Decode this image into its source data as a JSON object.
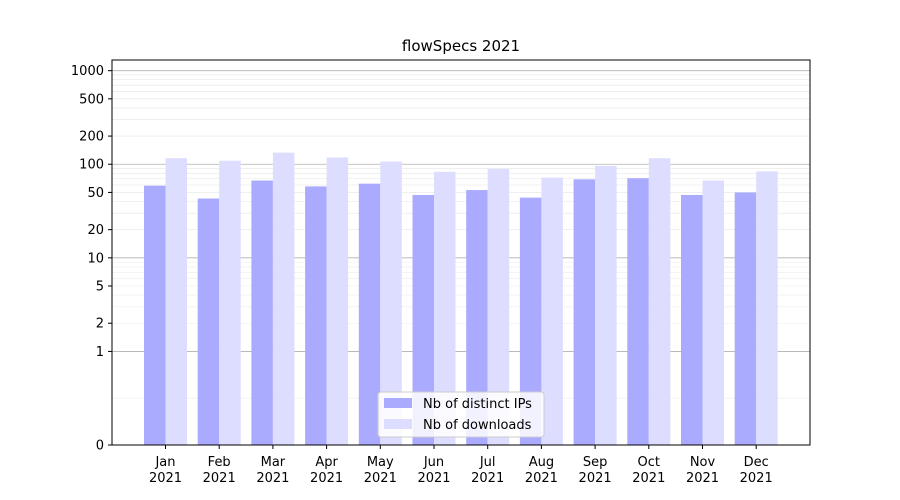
{
  "chart_data": {
    "type": "bar",
    "title": "flowSpecs 2021",
    "xlabel": "",
    "ylabel": "",
    "yscale": "symlog",
    "ylim": [
      0,
      1300
    ],
    "grid": "y-major-and-minor",
    "legend_position": "bottom-center",
    "categories": [
      {
        "month": "Jan",
        "year": "2021"
      },
      {
        "month": "Feb",
        "year": "2021"
      },
      {
        "month": "Mar",
        "year": "2021"
      },
      {
        "month": "Apr",
        "year": "2021"
      },
      {
        "month": "May",
        "year": "2021"
      },
      {
        "month": "Jun",
        "year": "2021"
      },
      {
        "month": "Jul",
        "year": "2021"
      },
      {
        "month": "Aug",
        "year": "2021"
      },
      {
        "month": "Sep",
        "year": "2021"
      },
      {
        "month": "Oct",
        "year": "2021"
      },
      {
        "month": "Nov",
        "year": "2021"
      },
      {
        "month": "Dec",
        "year": "2021"
      }
    ],
    "yticks": [
      {
        "value": 0,
        "label": "0"
      },
      {
        "value": 1,
        "label": "1"
      },
      {
        "value": 2,
        "label": "2"
      },
      {
        "value": 5,
        "label": "5"
      },
      {
        "value": 10,
        "label": "10"
      },
      {
        "value": 20,
        "label": "20"
      },
      {
        "value": 50,
        "label": "50"
      },
      {
        "value": 100,
        "label": "100"
      },
      {
        "value": 200,
        "label": "200"
      },
      {
        "value": 500,
        "label": "500"
      },
      {
        "value": 1000,
        "label": "1000"
      }
    ],
    "series": [
      {
        "name": "Nb of distinct IPs",
        "color": "#aaaaff",
        "values": [
          59,
          43,
          67,
          58,
          62,
          47,
          53,
          44,
          69,
          71,
          47,
          50
        ]
      },
      {
        "name": "Nb of downloads",
        "color": "#ddddff",
        "values": [
          116,
          109,
          133,
          118,
          107,
          83,
          89,
          72,
          96,
          116,
          67,
          84
        ]
      }
    ]
  }
}
